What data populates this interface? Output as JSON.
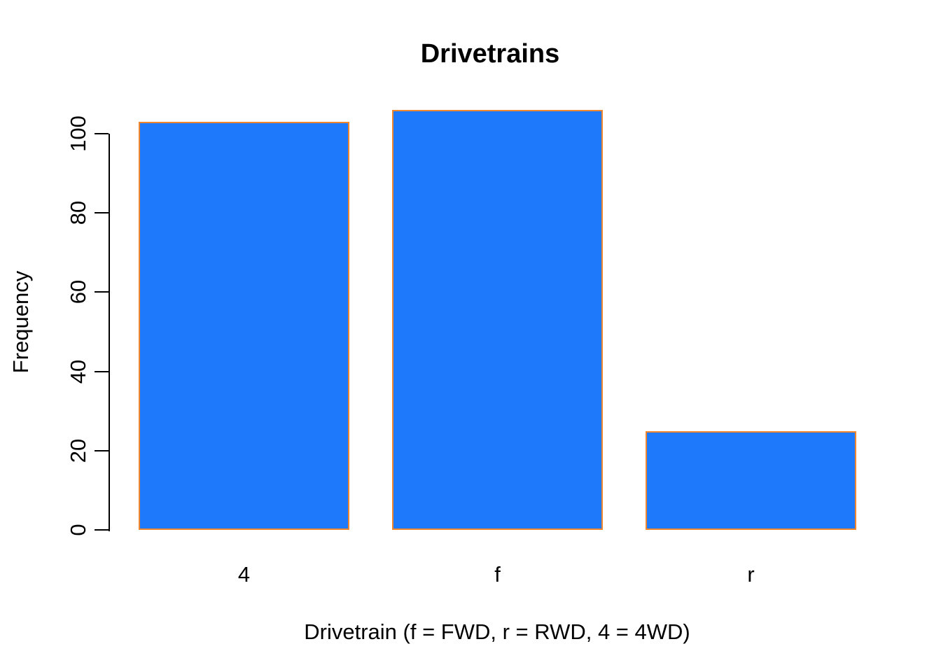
{
  "chart_data": {
    "type": "bar",
    "title": "Drivetrains",
    "xlabel": "Drivetrain (f = FWD, r = RWD, 4 = 4WD)",
    "ylabel": "Frequency",
    "categories": [
      "4",
      "f",
      "r"
    ],
    "values": [
      103,
      106,
      25
    ],
    "ylim": [
      0,
      100
    ],
    "yticks": [
      0,
      20,
      40,
      60,
      80,
      100
    ],
    "grid": "off",
    "legend": "none",
    "bar_fill_color": "#1E7AFA",
    "bar_border_color": "#F0862E",
    "axis_color": "#000000",
    "text_color": "#000000",
    "background_color": "#FFFFFF"
  }
}
